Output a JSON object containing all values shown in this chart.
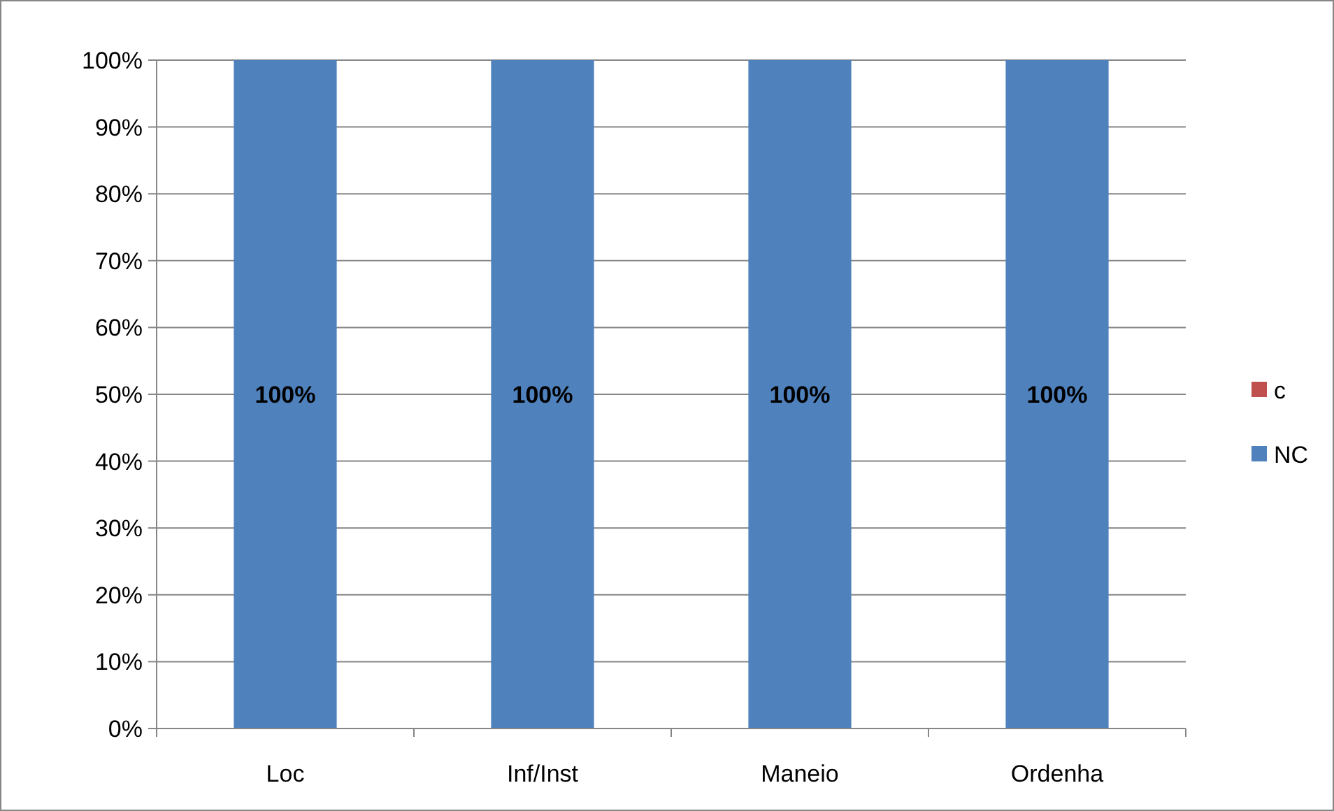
{
  "chart_data": {
    "type": "bar",
    "stacked": true,
    "categories": [
      "Loc",
      "Inf/Inst",
      "Maneio",
      "Ordenha"
    ],
    "series": [
      {
        "name": "NC",
        "color": "#4f81bd",
        "values": [
          100,
          100,
          100,
          100
        ],
        "value_labels": [
          "100%",
          "100%",
          "100%",
          "100%"
        ]
      },
      {
        "name": "c",
        "color": "#c0504d",
        "values": [
          0,
          0,
          0,
          0
        ]
      }
    ],
    "ylim": [
      0,
      100
    ],
    "yticks": [
      {
        "value": 0,
        "label": "0%"
      },
      {
        "value": 10,
        "label": "10%"
      },
      {
        "value": 20,
        "label": "20%"
      },
      {
        "value": 30,
        "label": "30%"
      },
      {
        "value": 40,
        "label": "40%"
      },
      {
        "value": 50,
        "label": "50%"
      },
      {
        "value": 60,
        "label": "60%"
      },
      {
        "value": 70,
        "label": "70%"
      },
      {
        "value": 80,
        "label": "80%"
      },
      {
        "value": 90,
        "label": "90%"
      },
      {
        "value": 100,
        "label": "100%"
      }
    ],
    "grid": "y",
    "legend": "right"
  }
}
